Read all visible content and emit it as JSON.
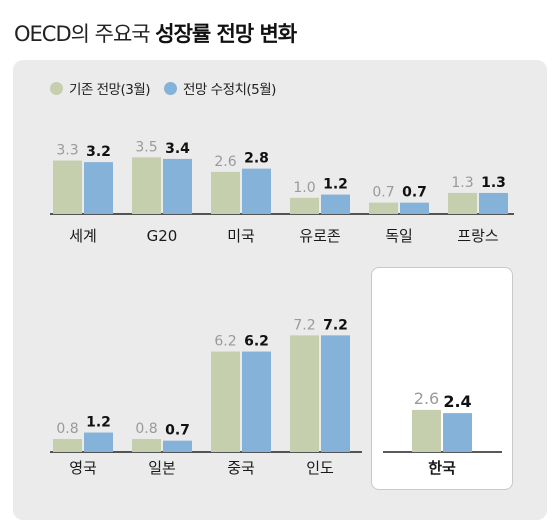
{
  "title": {
    "plain": "OECD의 주요국",
    "bold": "성장률 전망 변화"
  },
  "legend": [
    {
      "label": "기존 전망(3월)",
      "color": "#c5cfae"
    },
    {
      "label": "전망 수정치(5월)",
      "color": "#84b2d8"
    }
  ],
  "colors": {
    "original": "#c5cfae",
    "revised": "#84b2d8",
    "panel": "#ebebeb",
    "axis": "#222222",
    "label_original": "#9a9a9a",
    "label_revised": "#111111"
  },
  "chart_data": [
    {
      "type": "bar",
      "categories": [
        "세계",
        "G20",
        "미국",
        "유로존",
        "독일",
        "프랑스"
      ],
      "series": [
        {
          "name": "기존 전망(3월)",
          "values": [
            3.3,
            3.5,
            2.6,
            1.0,
            0.7,
            1.3
          ]
        },
        {
          "name": "전망 수정치(5월)",
          "values": [
            3.2,
            3.4,
            2.8,
            1.2,
            0.7,
            1.3
          ]
        }
      ]
    },
    {
      "type": "bar",
      "categories": [
        "영국",
        "일본",
        "중국",
        "인도",
        "한국"
      ],
      "highlight": "한국",
      "series": [
        {
          "name": "기존 전망(3월)",
          "values": [
            0.8,
            0.8,
            6.2,
            7.2,
            2.6
          ]
        },
        {
          "name": "전망 수정치(5월)",
          "values": [
            1.2,
            0.7,
            6.2,
            7.2,
            2.4
          ]
        }
      ]
    }
  ]
}
